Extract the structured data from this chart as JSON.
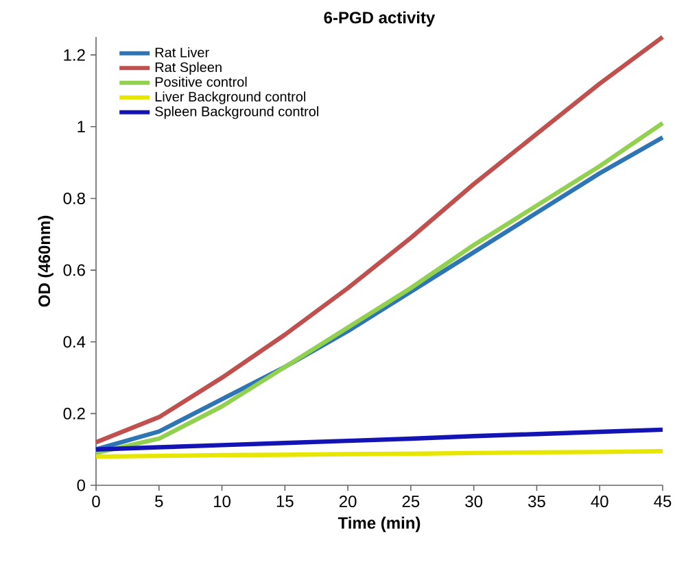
{
  "chart_data": {
    "type": "line",
    "title": "6-PGD activity",
    "xlabel": "Time (min)",
    "ylabel": "OD (460nm)",
    "x": [
      0,
      5,
      10,
      15,
      20,
      25,
      30,
      35,
      40,
      45
    ],
    "series": [
      {
        "name": "Rat Liver",
        "color": "#2e75b6",
        "values": [
          0.1,
          0.15,
          0.24,
          0.33,
          0.43,
          0.54,
          0.65,
          0.76,
          0.87,
          0.97
        ]
      },
      {
        "name": "Rat Spleen",
        "color": "#c0504d",
        "values": [
          0.12,
          0.19,
          0.3,
          0.42,
          0.55,
          0.69,
          0.84,
          0.98,
          1.12,
          1.25
        ]
      },
      {
        "name": "Positive control",
        "color": "#92d050",
        "values": [
          0.09,
          0.13,
          0.22,
          0.33,
          0.44,
          0.55,
          0.67,
          0.78,
          0.89,
          1.01
        ]
      },
      {
        "name": "Liver Background control",
        "color": "#e6e600",
        "values": [
          0.08,
          0.082,
          0.084,
          0.085,
          0.087,
          0.088,
          0.09,
          0.092,
          0.093,
          0.095
        ]
      },
      {
        "name": "Spleen Background control",
        "color": "#1414b4",
        "values": [
          0.1,
          0.106,
          0.112,
          0.118,
          0.124,
          0.13,
          0.137,
          0.143,
          0.149,
          0.155
        ]
      }
    ],
    "xlim": [
      0,
      45
    ],
    "ylim": [
      0,
      1.25
    ],
    "xticks": [
      0,
      5,
      10,
      15,
      20,
      25,
      30,
      35,
      40,
      45
    ],
    "yticks": [
      0,
      0.2,
      0.4,
      0.6,
      0.8,
      1,
      1.2
    ],
    "legend": "top left",
    "marker": "none",
    "line_style": "solid",
    "grid": false
  }
}
